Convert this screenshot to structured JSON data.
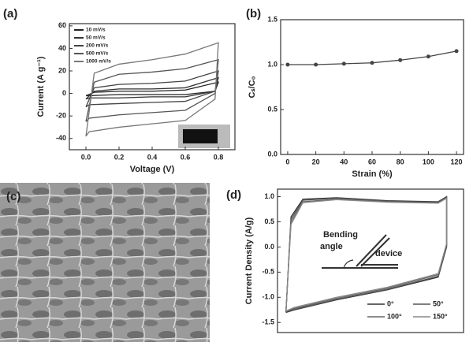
{
  "chart_data": [
    {
      "type": "line",
      "label": "(a)",
      "xlabel": "Voltage (V)",
      "ylabel": "Current (A g⁻¹)",
      "x": [
        0,
        0.05,
        0.2,
        0.4,
        0.6,
        0.8,
        0.78,
        0.6,
        0.4,
        0.2,
        0.02,
        0
      ],
      "series": [
        {
          "name": "10 mV/s",
          "color": "#222222",
          "values": [
            -2,
            1,
            2,
            2,
            3,
            10,
            2,
            -1,
            -1,
            -1,
            -2,
            -2
          ]
        },
        {
          "name": "50 mV/s",
          "color": "#333333",
          "values": [
            -5,
            2,
            4,
            4,
            5,
            14,
            2,
            -3,
            -3,
            -4,
            -4,
            -5
          ]
        },
        {
          "name": "200 mV/s",
          "color": "#444444",
          "values": [
            -12,
            5,
            8,
            9,
            11,
            20,
            2,
            -7,
            -8,
            -9,
            -10,
            -12
          ]
        },
        {
          "name": "500 mV/s",
          "color": "#555555",
          "values": [
            -25,
            10,
            17,
            19,
            22,
            30,
            0,
            -15,
            -17,
            -19,
            -22,
            -25
          ]
        },
        {
          "name": "1000 mV/s",
          "color": "#777777",
          "values": [
            -38,
            18,
            26,
            30,
            35,
            45,
            -5,
            -24,
            -27,
            -30,
            -34,
            -38
          ]
        }
      ],
      "xlim": [
        -0.1,
        0.9
      ],
      "ylim": [
        -50,
        62
      ],
      "xticks": [
        {
          "value": 0,
          "label": "0.0"
        },
        {
          "value": 0.2,
          "label": "0.2"
        },
        {
          "value": 0.4,
          "label": "0.4"
        },
        {
          "value": 0.6,
          "label": "0.6"
        },
        {
          "value": 0.8,
          "label": "0.8"
        }
      ],
      "yticks": [
        -40,
        -20,
        0,
        20,
        40,
        60
      ]
    },
    {
      "type": "line",
      "label": "(b)",
      "xlabel": "Strain (%)",
      "ylabel": "Cₛ/C₀",
      "x": [
        0,
        20,
        40,
        60,
        80,
        100,
        120
      ],
      "series": [
        {
          "color": "#444444",
          "values": [
            1.0,
            1.0,
            1.01,
            1.02,
            1.05,
            1.09,
            1.15
          ]
        }
      ],
      "markers": true,
      "xlim": [
        -5,
        125
      ],
      "ylim": [
        0,
        1.5
      ],
      "xticks": [
        0,
        20,
        40,
        60,
        80,
        100,
        120
      ],
      "yticks": [
        {
          "value": 0,
          "label": "0.0"
        },
        {
          "value": 0.5,
          "label": "0.5"
        },
        {
          "value": 1,
          "label": "1.0"
        },
        {
          "value": 1.5,
          "label": "1.5"
        }
      ]
    },
    {
      "type": "line",
      "label": "(d)",
      "ylabel": "Current Density (A/g)",
      "x": [
        0,
        0.03,
        0.1,
        0.3,
        0.6,
        0.9,
        0.95,
        0.95,
        0.9,
        0.6,
        0.3,
        0.05,
        0
      ],
      "series": [
        {
          "name": "0°",
          "color": "#333333",
          "values": [
            -1.3,
            0.6,
            0.95,
            0.98,
            0.92,
            0.9,
            1.0,
            0.0,
            -0.6,
            -0.85,
            -1.05,
            -1.25,
            -1.3
          ]
        },
        {
          "name": "50°",
          "color": "#555555",
          "values": [
            -1.29,
            0.55,
            0.93,
            0.97,
            0.91,
            0.89,
            0.99,
            0.02,
            -0.58,
            -0.84,
            -1.04,
            -1.24,
            -1.29
          ]
        },
        {
          "name": "100°",
          "color": "#666666",
          "values": [
            -1.28,
            0.5,
            0.9,
            0.95,
            0.9,
            0.88,
            0.98,
            0.05,
            -0.55,
            -0.82,
            -1.02,
            -1.22,
            -1.28
          ]
        },
        {
          "name": "150°",
          "color": "#888888",
          "values": [
            -1.27,
            0.45,
            0.88,
            0.94,
            0.89,
            0.87,
            0.97,
            0.07,
            -0.53,
            -0.8,
            -1.0,
            -1.2,
            -1.27
          ]
        }
      ],
      "xlim": [
        -0.05,
        1.05
      ],
      "ylim": [
        -1.7,
        1.15
      ],
      "yticks": [
        {
          "value": -1.5,
          "label": "-1.5"
        },
        {
          "value": -1,
          "label": "-1.0"
        },
        {
          "value": -0.5,
          "label": "-0.5"
        },
        {
          "value": 0,
          "label": "0.0"
        },
        {
          "value": 0.5,
          "label": "0.5"
        },
        {
          "value": 1,
          "label": "1.0"
        }
      ],
      "annotations": [
        "Bending",
        "angle",
        "device"
      ]
    }
  ],
  "image_panel": {
    "label": "(c)"
  }
}
